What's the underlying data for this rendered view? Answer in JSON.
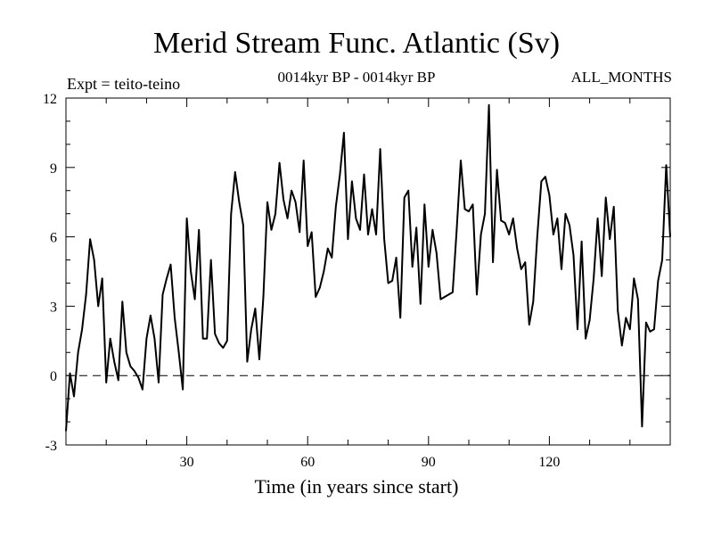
{
  "chart_data": {
    "type": "line",
    "title": "Merid Stream Func. Atlantic (Sv)",
    "subtitle": "0014kyr BP - 0014kyr BP",
    "left_note": "Expt = teito-teino",
    "right_note": "ALL_MONTHS",
    "xlabel": "Time (in years since start)",
    "ylabel": "",
    "xlim": [
      0,
      150
    ],
    "ylim": [
      -3,
      12
    ],
    "xticks_major": [
      30,
      60,
      90,
      120
    ],
    "xticks_minor": [
      10,
      20,
      40,
      50,
      70,
      80,
      100,
      110,
      130,
      140
    ],
    "yticks": [
      -3,
      0,
      3,
      6,
      9,
      12
    ],
    "reference_line": 0,
    "series": [
      {
        "name": "Merid Stream Func. Atlantic",
        "color": "#000000",
        "x": [
          0,
          1,
          2,
          3,
          4,
          5,
          6,
          7,
          8,
          9,
          10,
          11,
          12,
          13,
          14,
          15,
          16,
          17,
          18,
          19,
          20,
          21,
          22,
          23,
          24,
          25,
          26,
          27,
          28,
          29,
          30,
          31,
          32,
          33,
          34,
          35,
          36,
          37,
          38,
          39,
          40,
          41,
          42,
          43,
          44,
          45,
          46,
          47,
          48,
          49,
          50,
          51,
          52,
          53,
          54,
          55,
          56,
          57,
          58,
          59,
          60,
          61,
          62,
          63,
          64,
          65,
          66,
          67,
          68,
          69,
          70,
          71,
          72,
          73,
          74,
          75,
          76,
          77,
          78,
          79,
          80,
          81,
          82,
          83,
          84,
          85,
          86,
          87,
          88,
          89,
          90,
          91,
          92,
          93,
          94,
          95,
          96,
          97,
          98,
          99,
          100,
          101,
          102,
          103,
          104,
          105,
          106,
          107,
          108,
          109,
          110,
          111,
          112,
          113,
          114,
          115,
          116,
          117,
          118,
          119,
          120,
          121,
          122,
          123,
          124,
          125,
          126,
          127,
          128,
          129,
          130,
          131,
          132,
          133,
          134,
          135,
          136,
          137,
          138,
          139,
          140,
          141,
          142,
          143,
          144,
          145,
          146,
          147,
          148,
          149,
          150
        ],
        "y": [
          -2.4,
          0.1,
          -0.9,
          1.0,
          2.0,
          3.5,
          5.9,
          5.0,
          3.0,
          4.2,
          -0.3,
          1.6,
          0.6,
          -0.2,
          3.2,
          1.0,
          0.4,
          0.2,
          -0.1,
          -0.6,
          1.6,
          2.6,
          1.6,
          -0.3,
          3.5,
          4.2,
          4.8,
          2.5,
          1.0,
          -0.6,
          6.8,
          4.5,
          3.3,
          6.3,
          1.6,
          1.6,
          5.0,
          1.8,
          1.4,
          1.2,
          1.5,
          7.0,
          8.8,
          7.5,
          6.5,
          0.6,
          2.0,
          2.9,
          0.7,
          3.4,
          7.5,
          6.3,
          7.0,
          9.2,
          7.6,
          6.8,
          8.0,
          7.5,
          6.2,
          9.3,
          5.6,
          6.2,
          3.4,
          3.8,
          4.5,
          5.5,
          5.1,
          7.3,
          8.7,
          10.5,
          5.9,
          8.4,
          6.8,
          6.3,
          8.7,
          6.1,
          7.2,
          6.1,
          9.8,
          5.9,
          4.0,
          4.1,
          5.1,
          2.5,
          7.7,
          8.0,
          4.7,
          6.4,
          3.1,
          7.4,
          4.7,
          6.3,
          5.3,
          3.3,
          3.4,
          3.5,
          3.6,
          6.3,
          9.3,
          7.2,
          7.1,
          7.4,
          3.5,
          6.1,
          7.0,
          11.7,
          4.9,
          8.9,
          6.7,
          6.6,
          6.1,
          6.8,
          5.5,
          4.6,
          4.9,
          2.2,
          3.2,
          6.0,
          8.4,
          8.6,
          7.8,
          6.1,
          6.8,
          4.6,
          7.0,
          6.5,
          5.2,
          2.0,
          5.8,
          1.6,
          2.4,
          4.2,
          6.8,
          4.3,
          7.7,
          5.9,
          7.3,
          2.8,
          1.3,
          2.5,
          2.0,
          4.2,
          3.3,
          -2.2,
          2.3,
          1.9,
          2.0,
          4.1,
          5.0,
          9.1,
          6.0
        ]
      }
    ]
  }
}
